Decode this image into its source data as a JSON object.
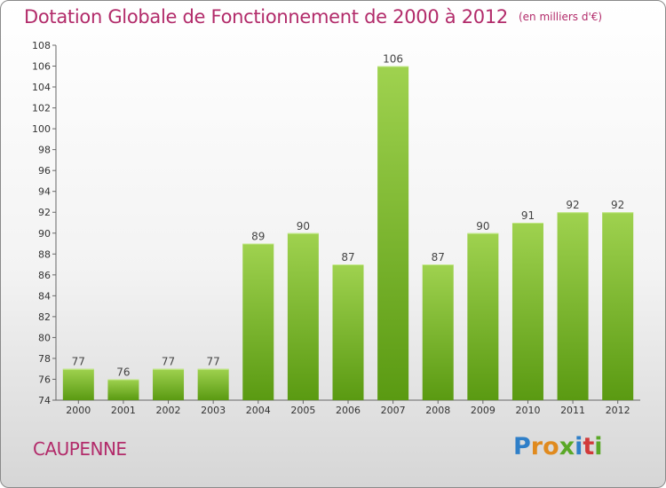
{
  "header": {
    "title": "Dotation Globale de Fonctionnement de 2000 à 2012",
    "unit": "(en milliers d'€)"
  },
  "footer": {
    "commune": "CAUPENNE",
    "brand_letters": [
      "P",
      "r",
      "o",
      "x",
      "i",
      "t",
      "i"
    ]
  },
  "colors": {
    "title": "#b22b6a",
    "bar_top": "#9fd24f",
    "bar_bottom": "#5a9a12",
    "brand": [
      "#2f7fc8",
      "#e08a1e",
      "#e08a1e",
      "#5aa827",
      "#2f7fc8",
      "#d13a3a",
      "#5aa827"
    ]
  },
  "chart_data": {
    "type": "bar",
    "title": "Dotation Globale de Fonctionnement de 2000 à 2012",
    "categories": [
      "2000",
      "2001",
      "2002",
      "2003",
      "2004",
      "2005",
      "2006",
      "2007",
      "2008",
      "2009",
      "2010",
      "2011",
      "2012"
    ],
    "values": [
      77,
      76,
      77,
      77,
      89,
      90,
      87,
      106,
      87,
      90,
      91,
      92,
      92
    ],
    "ylim": [
      74,
      108
    ],
    "yticks": [
      74,
      76,
      78,
      80,
      82,
      84,
      86,
      88,
      90,
      92,
      94,
      96,
      98,
      100,
      102,
      104,
      106,
      108
    ],
    "grid": false,
    "data_labels": true
  }
}
